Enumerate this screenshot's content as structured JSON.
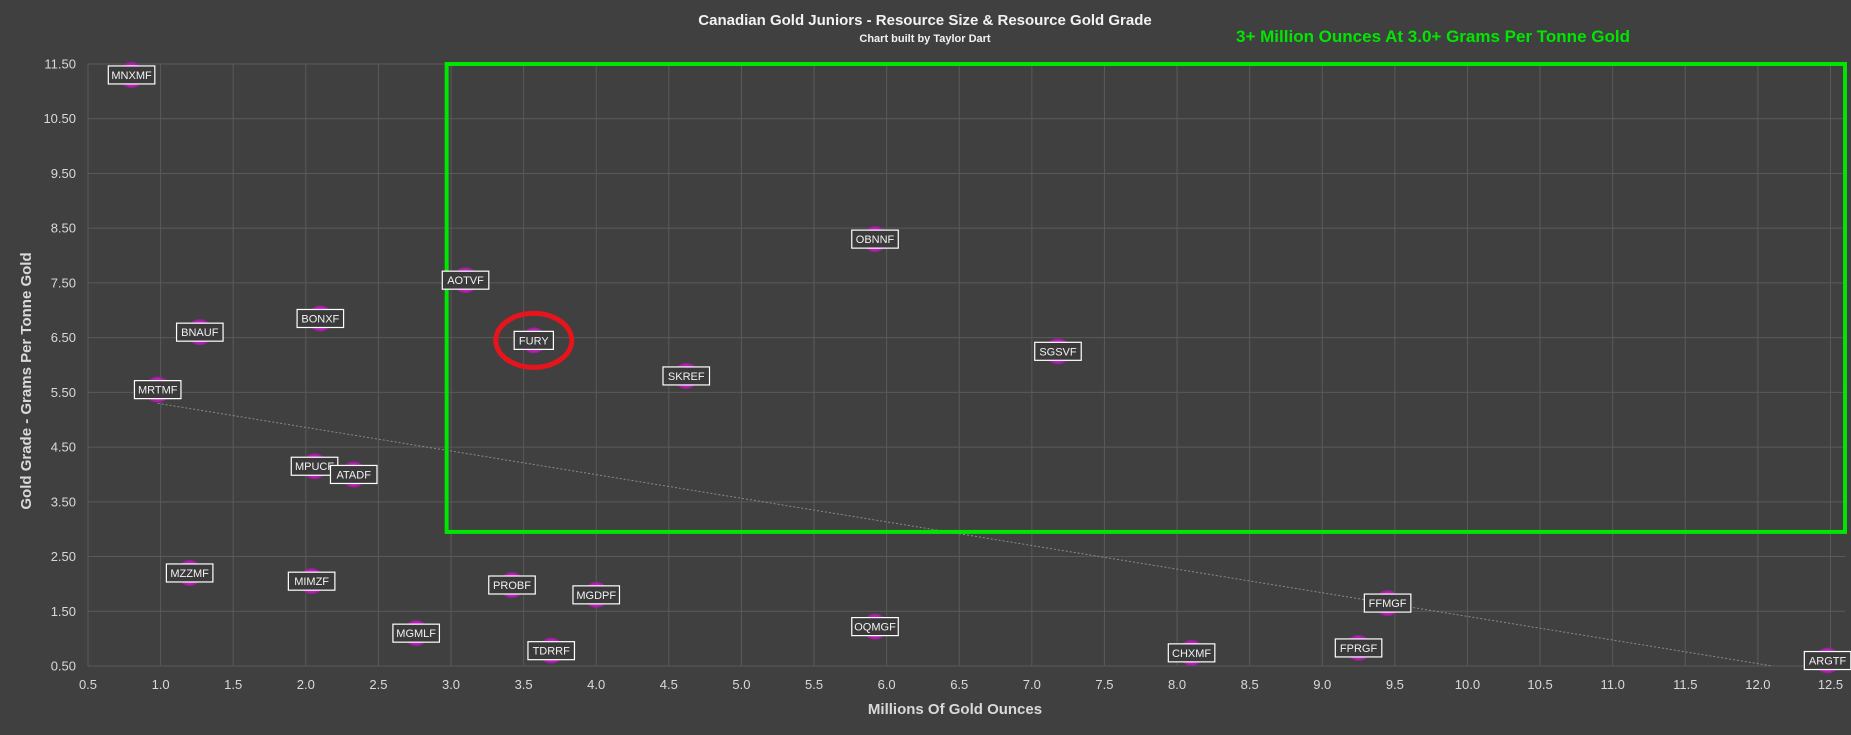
{
  "chart_data": {
    "type": "scatter",
    "title": "Canadian Gold Juniors - Resource Size & Resource Gold Grade",
    "subtitle": "Chart built by Taylor Dart",
    "xlabel": "Millions Of Gold Ounces",
    "ylabel": "Gold Grade - Grams Per Tonne Gold",
    "xlim": [
      0.5,
      12.6
    ],
    "ylim": [
      0.5,
      11.5
    ],
    "x_ticks": [
      "0.5",
      "1.0",
      "1.5",
      "2.0",
      "2.5",
      "3.0",
      "3.5",
      "4.0",
      "4.5",
      "5.0",
      "5.5",
      "6.0",
      "6.5",
      "7.0",
      "7.5",
      "8.0",
      "8.5",
      "9.0",
      "9.5",
      "10.0",
      "10.5",
      "11.0",
      "11.5",
      "12.0",
      "12.5"
    ],
    "y_ticks": [
      "0.50",
      "1.50",
      "2.50",
      "3.50",
      "4.50",
      "5.50",
      "6.50",
      "7.50",
      "8.50",
      "9.50",
      "10.50",
      "11.50"
    ],
    "grid": true,
    "marker_color": "#e52ee5",
    "points": [
      {
        "label": "MNXMF",
        "x": 0.8,
        "y": 11.3
      },
      {
        "label": "BNAUF",
        "x": 1.27,
        "y": 6.6
      },
      {
        "label": "BONXF",
        "x": 2.1,
        "y": 6.85
      },
      {
        "label": "MRTMF",
        "x": 0.98,
        "y": 5.55
      },
      {
        "label": "MPUCF",
        "x": 2.06,
        "y": 4.15
      },
      {
        "label": "ATADF",
        "x": 2.33,
        "y": 4.0
      },
      {
        "label": "MZZMF",
        "x": 1.2,
        "y": 2.2
      },
      {
        "label": "MIMZF",
        "x": 2.04,
        "y": 2.05
      },
      {
        "label": "MGMLF",
        "x": 2.76,
        "y": 1.1
      },
      {
        "label": "PROBF",
        "x": 3.42,
        "y": 1.98
      },
      {
        "label": "TDRRF",
        "x": 3.69,
        "y": 0.78
      },
      {
        "label": "MGDPF",
        "x": 4.0,
        "y": 1.8
      },
      {
        "label": "AOTVF",
        "x": 3.1,
        "y": 7.55
      },
      {
        "label": "FURY",
        "x": 3.57,
        "y": 6.45
      },
      {
        "label": "SKREF",
        "x": 4.62,
        "y": 5.8
      },
      {
        "label": "OBNNF",
        "x": 5.92,
        "y": 8.3
      },
      {
        "label": "SGSVF",
        "x": 7.18,
        "y": 6.25
      },
      {
        "label": "OQMGF",
        "x": 5.92,
        "y": 1.22
      },
      {
        "label": "CHXMF",
        "x": 8.1,
        "y": 0.74
      },
      {
        "label": "FPRGF",
        "x": 9.25,
        "y": 0.83
      },
      {
        "label": "FFMGF",
        "x": 9.45,
        "y": 1.65
      },
      {
        "label": "ARGTF",
        "x": 12.48,
        "y": 0.6
      }
    ],
    "trendline": {
      "x": [
        0.98,
        12.1
      ],
      "y": [
        5.3,
        0.5
      ]
    },
    "highlight_region": {
      "x": [
        2.97,
        12.6
      ],
      "y": [
        2.95,
        11.5
      ],
      "color": "#00e600"
    },
    "highlight_label": "3+ Million Ounces At 3.0+ Grams Per Tonne Gold",
    "circled_point": "FURY",
    "circle_color": "#e8141c"
  }
}
